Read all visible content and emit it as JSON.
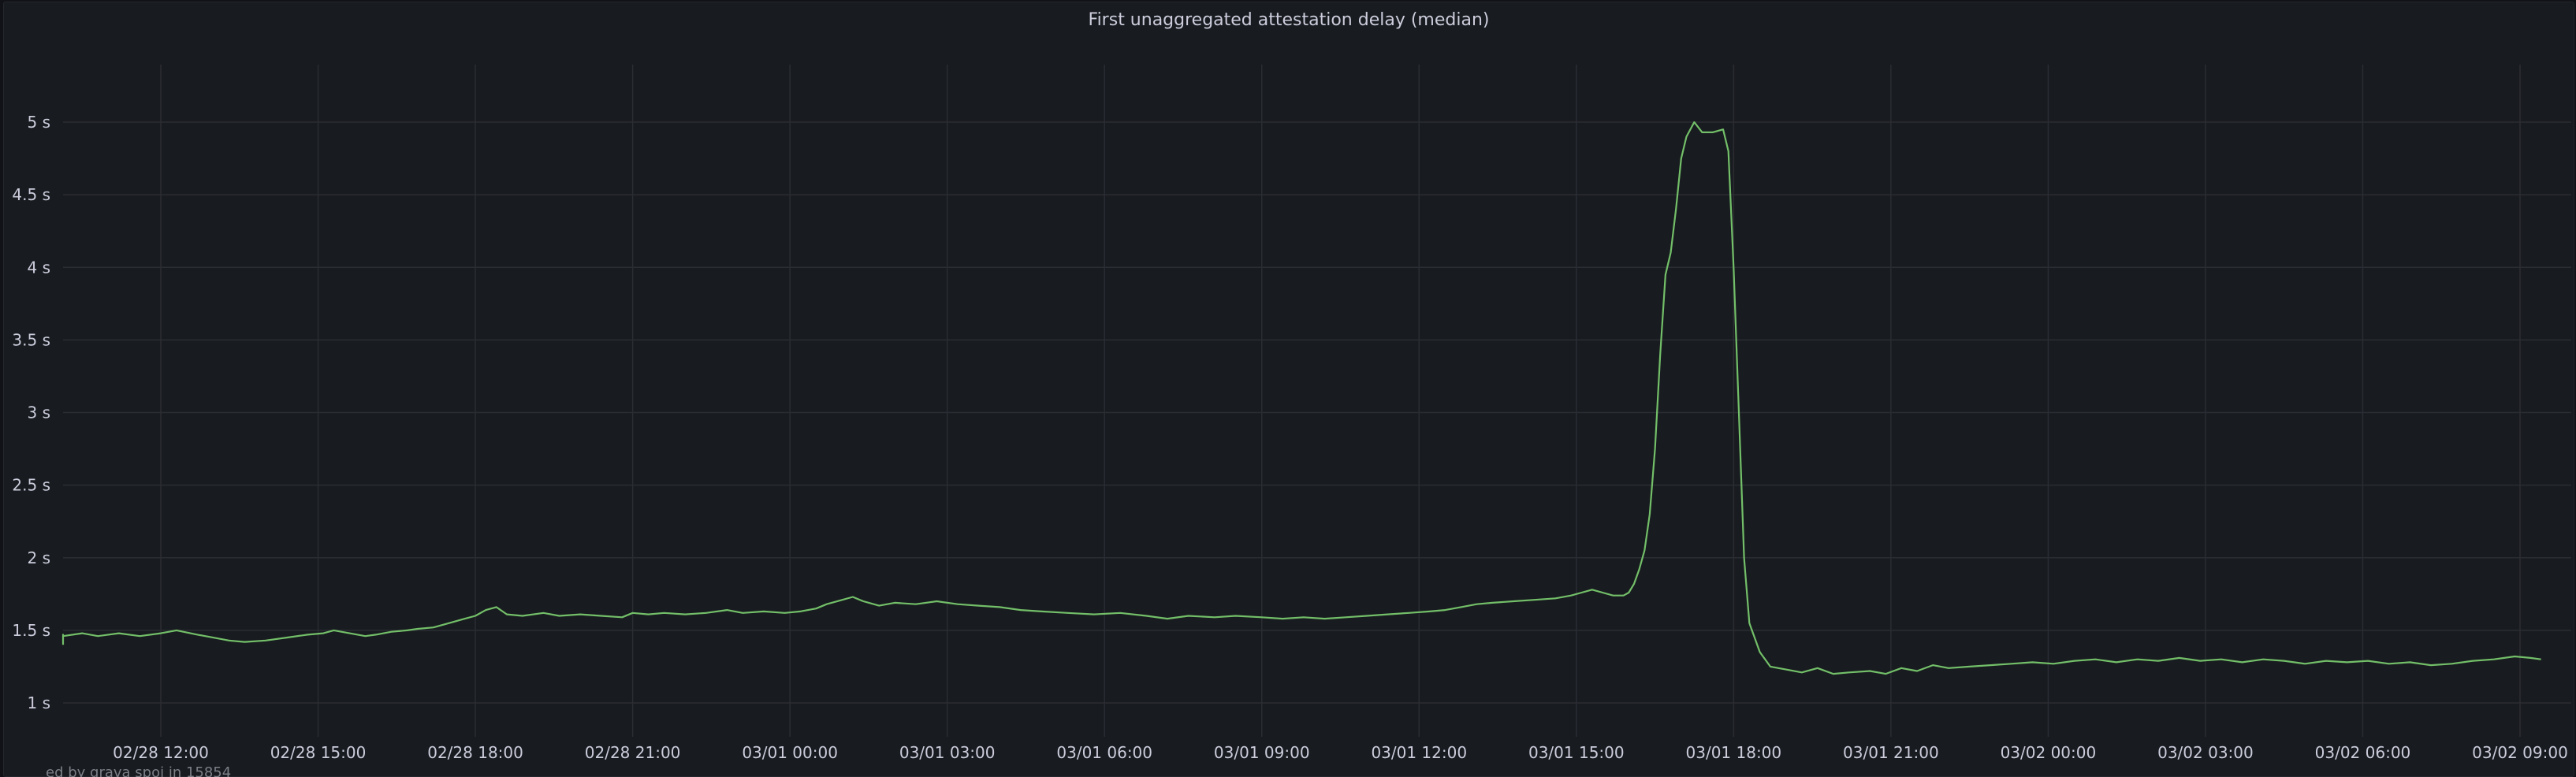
{
  "panel": {
    "title": "First unaggregated attestation delay (median)",
    "footer": "ed by grava spoi in 15854"
  },
  "chart_data": {
    "type": "line",
    "title": "First unaggregated attestation delay (median)",
    "xlabel": "",
    "ylabel": "",
    "unit": "s",
    "grid": true,
    "legend": "none",
    "ylim": [
      0.9,
      5.8
    ],
    "xlim_hours": [
      -4.6,
      45.4
    ],
    "y_ticks": [
      {
        "value": 1,
        "label": "1 s"
      },
      {
        "value": 1.5,
        "label": "1.5 s"
      },
      {
        "value": 2,
        "label": "2 s"
      },
      {
        "value": 2.5,
        "label": "2.5 s"
      },
      {
        "value": 3,
        "label": "3 s"
      },
      {
        "value": 3.5,
        "label": "3.5 s"
      },
      {
        "value": 4,
        "label": "4 s"
      },
      {
        "value": 4.5,
        "label": "4.5 s"
      },
      {
        "value": 5,
        "label": "5 s"
      }
    ],
    "x_ticks": [
      {
        "hour": 0,
        "label": "02/28 12:00"
      },
      {
        "hour": 3,
        "label": "02/28 15:00"
      },
      {
        "hour": 6,
        "label": "02/28 18:00"
      },
      {
        "hour": 9,
        "label": "02/28 21:00"
      },
      {
        "hour": 12,
        "label": "03/01 00:00"
      },
      {
        "hour": 15,
        "label": "03/01 03:00"
      },
      {
        "hour": 18,
        "label": "03/01 06:00"
      },
      {
        "hour": 21,
        "label": "03/01 09:00"
      },
      {
        "hour": 24,
        "label": "03/01 12:00"
      },
      {
        "hour": 27,
        "label": "03/01 15:00"
      },
      {
        "hour": 30,
        "label": "03/01 18:00"
      },
      {
        "hour": 33,
        "label": "03/01 21:00"
      },
      {
        "hour": 36,
        "label": "03/02 00:00"
      },
      {
        "hour": 39,
        "label": "03/02 03:00"
      },
      {
        "hour": 42,
        "label": "03/02 06:00"
      },
      {
        "hour": 45,
        "label": "03/02 09:00"
      }
    ],
    "series": [
      {
        "name": "",
        "color": "#73bf69",
        "points": [
          [
            -4.6,
            1.4
          ],
          [
            -4.3,
            1.44
          ],
          [
            -3.9,
            1.45
          ],
          [
            -3.5,
            1.44
          ],
          [
            -3.1,
            1.47
          ],
          [
            -2.8,
            1.45
          ],
          [
            -2.3,
            1.44
          ],
          [
            -1.9,
            1.46
          ],
          [
            -1.5,
            1.48
          ],
          [
            -1.2,
            1.46
          ],
          [
            -0.8,
            1.48
          ],
          [
            -0.4,
            1.46
          ],
          [
            0.0,
            1.48
          ],
          [
            0.3,
            1.5
          ],
          [
            0.7,
            1.47
          ],
          [
            1.0,
            1.45
          ],
          [
            1.3,
            1.43
          ],
          [
            1.6,
            1.42
          ],
          [
            2.0,
            1.43
          ],
          [
            2.4,
            1.45
          ],
          [
            2.8,
            1.47
          ],
          [
            3.1,
            1.48
          ],
          [
            3.3,
            1.5
          ],
          [
            3.6,
            1.48
          ],
          [
            3.9,
            1.46
          ],
          [
            4.1,
            1.47
          ],
          [
            4.4,
            1.49
          ],
          [
            4.7,
            1.5
          ],
          [
            4.9,
            1.51
          ],
          [
            5.2,
            1.52
          ],
          [
            5.5,
            1.55
          ],
          [
            5.8,
            1.58
          ],
          [
            6.0,
            1.6
          ],
          [
            6.2,
            1.64
          ],
          [
            6.4,
            1.66
          ],
          [
            6.6,
            1.61
          ],
          [
            6.9,
            1.6
          ],
          [
            7.3,
            1.62
          ],
          [
            7.6,
            1.6
          ],
          [
            8.0,
            1.61
          ],
          [
            8.4,
            1.6
          ],
          [
            8.8,
            1.59
          ],
          [
            9.0,
            1.62
          ],
          [
            9.3,
            1.61
          ],
          [
            9.6,
            1.62
          ],
          [
            10.0,
            1.61
          ],
          [
            10.4,
            1.62
          ],
          [
            10.8,
            1.64
          ],
          [
            11.1,
            1.62
          ],
          [
            11.5,
            1.63
          ],
          [
            11.9,
            1.62
          ],
          [
            12.2,
            1.63
          ],
          [
            12.5,
            1.65
          ],
          [
            12.7,
            1.68
          ],
          [
            13.0,
            1.71
          ],
          [
            13.2,
            1.73
          ],
          [
            13.4,
            1.7
          ],
          [
            13.7,
            1.67
          ],
          [
            14.0,
            1.69
          ],
          [
            14.4,
            1.68
          ],
          [
            14.8,
            1.7
          ],
          [
            15.2,
            1.68
          ],
          [
            15.6,
            1.67
          ],
          [
            16.0,
            1.66
          ],
          [
            16.4,
            1.64
          ],
          [
            16.8,
            1.63
          ],
          [
            17.3,
            1.62
          ],
          [
            17.8,
            1.61
          ],
          [
            18.3,
            1.62
          ],
          [
            18.8,
            1.6
          ],
          [
            19.2,
            1.58
          ],
          [
            19.6,
            1.6
          ],
          [
            20.1,
            1.59
          ],
          [
            20.5,
            1.6
          ],
          [
            21.0,
            1.59
          ],
          [
            21.4,
            1.58
          ],
          [
            21.8,
            1.59
          ],
          [
            22.2,
            1.58
          ],
          [
            22.6,
            1.59
          ],
          [
            23.0,
            1.6
          ],
          [
            23.4,
            1.61
          ],
          [
            23.8,
            1.62
          ],
          [
            24.2,
            1.63
          ],
          [
            24.5,
            1.64
          ],
          [
            24.8,
            1.66
          ],
          [
            25.1,
            1.68
          ],
          [
            25.4,
            1.69
          ],
          [
            25.8,
            1.7
          ],
          [
            26.2,
            1.71
          ],
          [
            26.6,
            1.72
          ],
          [
            26.9,
            1.74
          ],
          [
            27.1,
            1.76
          ],
          [
            27.3,
            1.78
          ],
          [
            27.5,
            1.76
          ],
          [
            27.7,
            1.74
          ],
          [
            27.9,
            1.74
          ],
          [
            28.0,
            1.76
          ],
          [
            28.1,
            1.82
          ],
          [
            28.2,
            1.92
          ],
          [
            28.3,
            2.05
          ],
          [
            28.4,
            2.3
          ],
          [
            28.5,
            2.75
          ],
          [
            28.6,
            3.4
          ],
          [
            28.7,
            3.95
          ],
          [
            28.8,
            4.1
          ],
          [
            28.9,
            4.4
          ],
          [
            29.0,
            4.75
          ],
          [
            29.1,
            4.9
          ],
          [
            29.25,
            5.0
          ],
          [
            29.4,
            4.93
          ],
          [
            29.6,
            4.93
          ],
          [
            29.8,
            4.95
          ],
          [
            29.9,
            4.8
          ],
          [
            30.0,
            4.0
          ],
          [
            30.1,
            3.0
          ],
          [
            30.2,
            2.0
          ],
          [
            30.3,
            1.55
          ],
          [
            30.5,
            1.35
          ],
          [
            30.7,
            1.25
          ],
          [
            31.0,
            1.23
          ],
          [
            31.3,
            1.21
          ],
          [
            31.6,
            1.24
          ],
          [
            31.9,
            1.2
          ],
          [
            32.2,
            1.21
          ],
          [
            32.6,
            1.22
          ],
          [
            32.9,
            1.2
          ],
          [
            33.2,
            1.24
          ],
          [
            33.5,
            1.22
          ],
          [
            33.8,
            1.26
          ],
          [
            34.1,
            1.24
          ],
          [
            34.5,
            1.25
          ],
          [
            34.9,
            1.26
          ],
          [
            35.3,
            1.27
          ],
          [
            35.7,
            1.28
          ],
          [
            36.1,
            1.27
          ],
          [
            36.5,
            1.29
          ],
          [
            36.9,
            1.3
          ],
          [
            37.3,
            1.28
          ],
          [
            37.7,
            1.3
          ],
          [
            38.1,
            1.29
          ],
          [
            38.5,
            1.31
          ],
          [
            38.9,
            1.29
          ],
          [
            39.3,
            1.3
          ],
          [
            39.7,
            1.28
          ],
          [
            40.1,
            1.3
          ],
          [
            40.5,
            1.29
          ],
          [
            40.9,
            1.27
          ],
          [
            41.3,
            1.29
          ],
          [
            41.7,
            1.28
          ],
          [
            42.1,
            1.29
          ],
          [
            42.5,
            1.27
          ],
          [
            42.9,
            1.28
          ],
          [
            43.3,
            1.26
          ],
          [
            43.7,
            1.27
          ],
          [
            44.1,
            1.29
          ],
          [
            44.5,
            1.3
          ],
          [
            44.9,
            1.32
          ],
          [
            45.2,
            1.31
          ],
          [
            45.4,
            1.3
          ]
        ]
      }
    ]
  }
}
